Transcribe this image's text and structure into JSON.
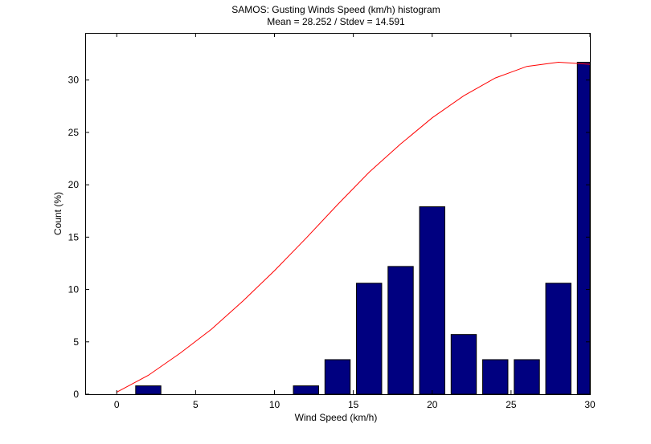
{
  "chart_data": {
    "type": "bar",
    "title": "SAMOS: Gusting Winds Speed (km/h) histogram",
    "subtitle": "Mean = 28.252 / Stdev = 14.591",
    "xlabel": "Wind Speed (km/h)",
    "ylabel": "Count (%)",
    "xlim": [
      -2,
      30
    ],
    "ylim": [
      0,
      34.5
    ],
    "xticks": [
      "0",
      "5",
      "10",
      "15",
      "20",
      "25",
      "30"
    ],
    "yticks": [
      "0",
      "5",
      "10",
      "15",
      "20",
      "25",
      "30"
    ],
    "grid": false,
    "bar_color": "#000080",
    "bars": [
      {
        "x": 2,
        "value": 0.8
      },
      {
        "x": 12,
        "value": 0.8
      },
      {
        "x": 14,
        "value": 3.3
      },
      {
        "x": 16,
        "value": 10.6
      },
      {
        "x": 18,
        "value": 12.2
      },
      {
        "x": 20,
        "value": 17.9
      },
      {
        "x": 22,
        "value": 5.7
      },
      {
        "x": 24,
        "value": 3.3
      },
      {
        "x": 26,
        "value": 3.3
      },
      {
        "x": 28,
        "value": 10.6
      },
      {
        "x": 30,
        "value": 31.7
      }
    ],
    "curve": {
      "color": "#ff0000",
      "x": [
        0,
        2,
        4,
        6,
        8,
        10,
        12,
        14,
        16,
        18,
        20,
        22,
        24,
        26,
        28,
        29,
        30
      ],
      "y": [
        0.2,
        1.8,
        3.9,
        6.2,
        8.9,
        11.8,
        14.9,
        18.1,
        21.2,
        23.9,
        26.4,
        28.5,
        30.2,
        31.3,
        31.7,
        31.6,
        31.5
      ]
    }
  }
}
